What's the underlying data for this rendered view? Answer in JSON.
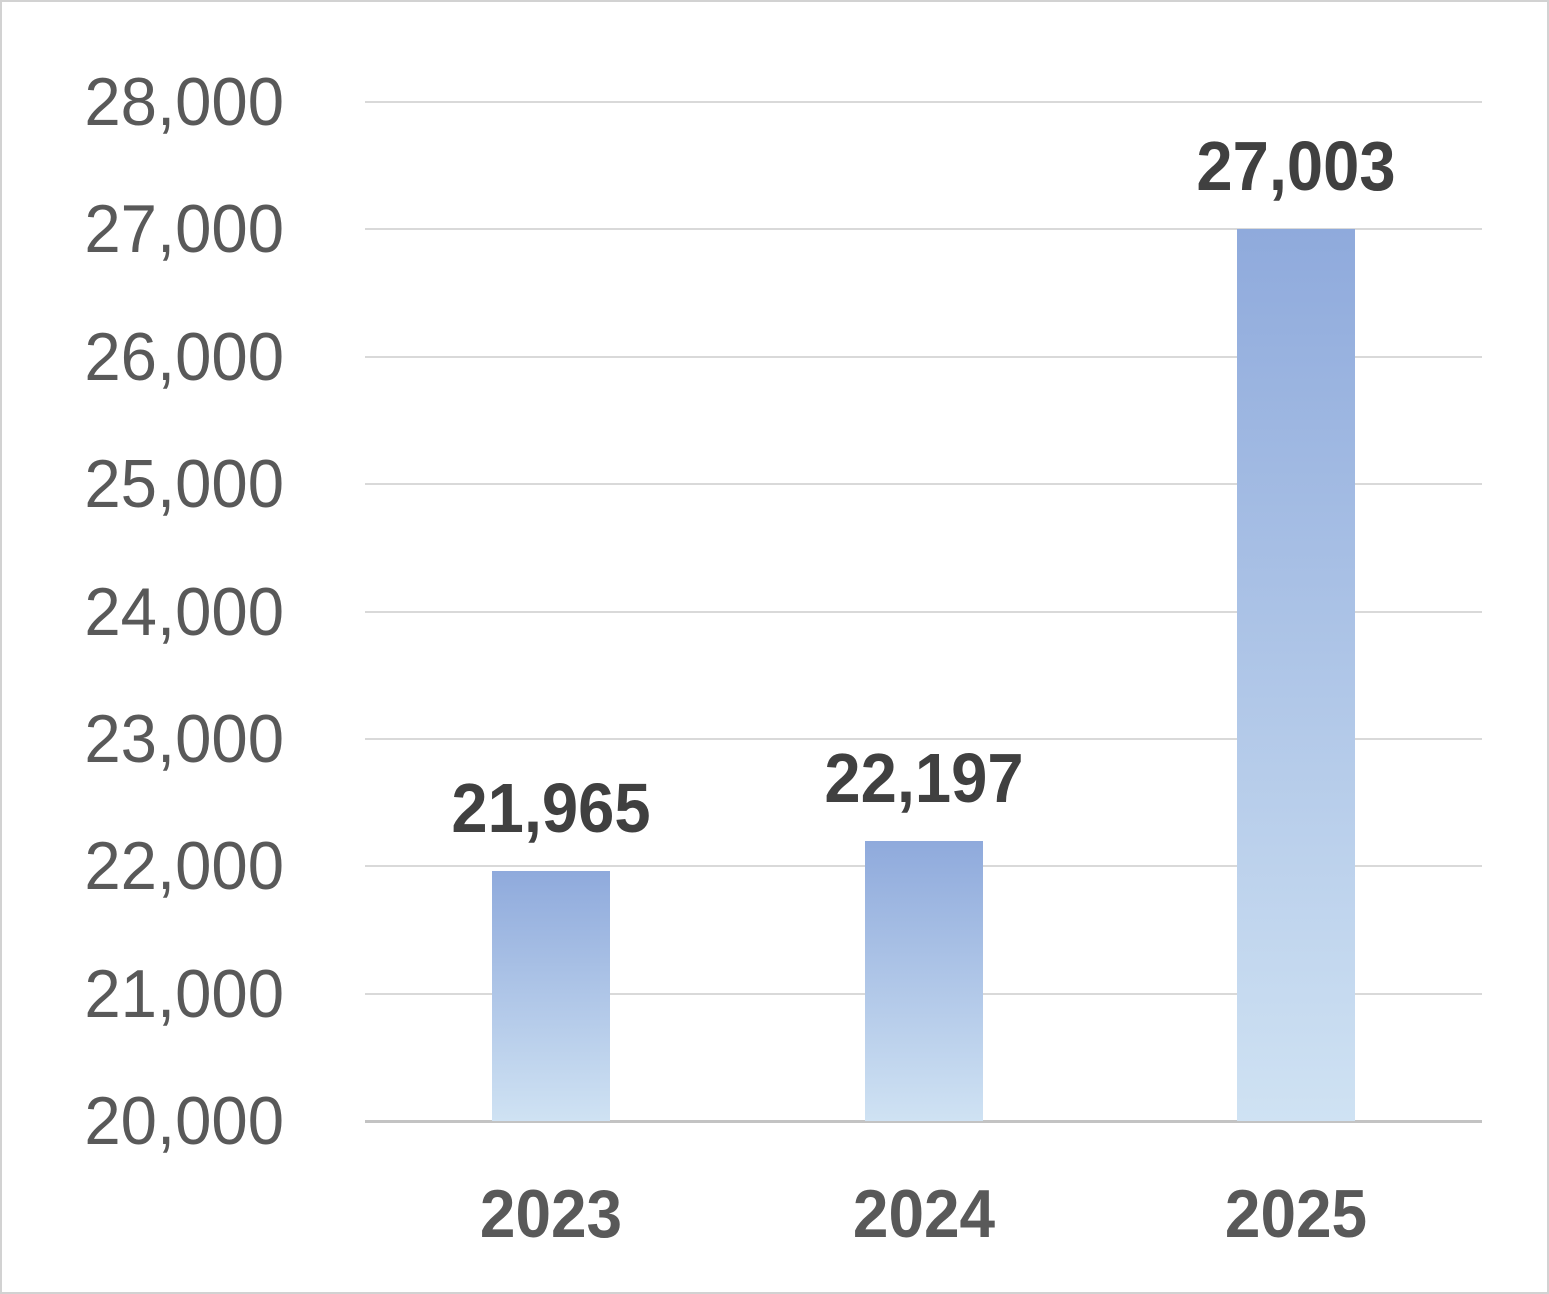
{
  "chart_data": {
    "type": "bar",
    "title": "",
    "xlabel": "",
    "ylabel": "",
    "categories": [
      "2023",
      "2024",
      "2025"
    ],
    "values": [
      21965,
      22197,
      27003
    ],
    "data_labels": [
      "21,965",
      "22,197",
      "27,003"
    ],
    "ylim": [
      20000,
      28000
    ],
    "ytick_step": 1000,
    "ytick_labels": [
      "20,000",
      "21,000",
      "22,000",
      "23,000",
      "24,000",
      "25,000",
      "26,000",
      "27,000",
      "28,000"
    ],
    "grid": true,
    "legend_position": "none",
    "colors": {
      "bar_gradient_top": "#8FAADC",
      "bar_gradient_bottom": "#CFE2F3",
      "data_label": "#404040",
      "tick_label": "#595959",
      "gridline": "#D9D9D9",
      "axis_line": "#C3C3C3",
      "frame_border": "#D2D2D2",
      "background": "#FFFFFF"
    }
  }
}
